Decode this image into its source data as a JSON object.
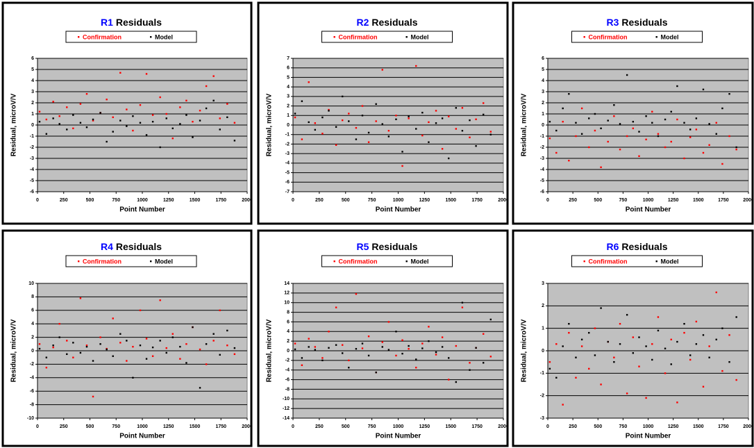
{
  "chart_data": [
    {
      "type": "scatter",
      "title_prefix": "R1",
      "title_prefix_color": "#0000ff",
      "title": "Residuals",
      "xlabel": "Point Number",
      "ylabel": "Residual, microV/V",
      "xlim": [
        0,
        2000
      ],
      "xticks": [
        0,
        250,
        500,
        750,
        1000,
        1250,
        1500,
        1750,
        2000
      ],
      "ylim": [
        -6,
        6
      ],
      "yticks": [
        -6,
        -5,
        -4,
        -3,
        -2,
        -1,
        0,
        1,
        2,
        3,
        4,
        5,
        6
      ],
      "grid": true,
      "plot_background": "#c0c0c0",
      "x": [
        20,
        85,
        150,
        210,
        280,
        340,
        410,
        470,
        530,
        600,
        660,
        720,
        790,
        850,
        910,
        980,
        1040,
        1100,
        1170,
        1230,
        1290,
        1360,
        1420,
        1480,
        1550,
        1610,
        1680,
        1740,
        1810,
        1880
      ],
      "series": [
        {
          "name": "Confirmation",
          "color": "#ff0000",
          "values": [
            1.2,
            0.5,
            2.1,
            0.8,
            1.6,
            -0.3,
            1.9,
            2.8,
            0.4,
            1.1,
            2.3,
            0.7,
            4.7,
            1.4,
            -0.5,
            1.8,
            4.6,
            0.9,
            2.5,
            1.0,
            -1.2,
            1.6,
            2.2,
            0.3,
            1.3,
            3.5,
            4.4,
            0.6,
            1.9,
            0.2
          ]
        },
        {
          "name": "Model",
          "color": "#000000",
          "values": [
            0.3,
            -0.8,
            0.6,
            0.1,
            -0.4,
            0.9,
            0.2,
            -0.2,
            0.5,
            1.1,
            -1.5,
            -0.6,
            0.4,
            -0.1,
            0.8,
            0.2,
            -0.9,
            0.3,
            -2.0,
            0.6,
            -0.3,
            0.1,
            0.9,
            -1.1,
            0.4,
            1.5,
            2.2,
            -0.4,
            0.7,
            -1.4
          ]
        }
      ]
    },
    {
      "type": "scatter",
      "title_prefix": "R2",
      "title_prefix_color": "#0000ff",
      "title": "Residuals",
      "xlabel": "Point Number",
      "ylabel": "Residual, microV/V",
      "xlim": [
        0,
        2000
      ],
      "xticks": [
        0,
        250,
        500,
        750,
        1000,
        1250,
        1500,
        1750,
        2000
      ],
      "ylim": [
        -7,
        7
      ],
      "yticks": [
        -7,
        -6,
        -5,
        -4,
        -3,
        -2,
        -1,
        0,
        1,
        2,
        3,
        4,
        5,
        6,
        7
      ],
      "grid": true,
      "plot_background": "#c0c0c0",
      "x": [
        20,
        85,
        150,
        210,
        280,
        340,
        410,
        470,
        530,
        600,
        660,
        720,
        790,
        850,
        910,
        980,
        1040,
        1100,
        1170,
        1230,
        1290,
        1360,
        1420,
        1480,
        1550,
        1610,
        1680,
        1740,
        1810,
        1880
      ],
      "series": [
        {
          "name": "Confirmation",
          "color": "#ff0000",
          "values": [
            0.8,
            -1.5,
            4.5,
            0.2,
            -0.9,
            1.6,
            -2.1,
            0.5,
            1.2,
            -0.3,
            2.0,
            -1.8,
            0.4,
            5.8,
            -0.6,
            1.0,
            -4.3,
            0.7,
            6.2,
            -1.1,
            0.3,
            1.5,
            -2.5,
            0.9,
            -0.4,
            1.8,
            -1.3,
            0.6,
            2.3,
            -0.7
          ]
        },
        {
          "name": "Model",
          "color": "#000000",
          "values": [
            1.2,
            2.5,
            0.3,
            -0.5,
            0.8,
            1.5,
            -0.2,
            3.0,
            0.4,
            -1.5,
            1.0,
            -0.8,
            2.2,
            0.1,
            -1.2,
            0.6,
            -2.8,
            0.9,
            -0.4,
            1.3,
            -1.8,
            0.2,
            0.7,
            -3.5,
            1.8,
            -0.6,
            0.5,
            -2.2,
            1.1,
            -1.0
          ]
        }
      ]
    },
    {
      "type": "scatter",
      "title_prefix": "R3",
      "title_prefix_color": "#0000ff",
      "title": "Residuals",
      "xlabel": "Point Number",
      "ylabel": "Residual, microV/V",
      "xlim": [
        0,
        2000
      ],
      "xticks": [
        0,
        250,
        500,
        750,
        1000,
        1250,
        1500,
        1750,
        2000
      ],
      "ylim": [
        -6,
        6
      ],
      "yticks": [
        -6,
        -5,
        -4,
        -3,
        -2,
        -1,
        0,
        1,
        2,
        3,
        4,
        5,
        6
      ],
      "grid": true,
      "plot_background": "#c0c0c0",
      "x": [
        20,
        85,
        150,
        210,
        280,
        340,
        410,
        470,
        530,
        600,
        660,
        720,
        790,
        850,
        910,
        980,
        1040,
        1100,
        1170,
        1230,
        1290,
        1360,
        1420,
        1480,
        1550,
        1610,
        1680,
        1740,
        1810,
        1880
      ],
      "series": [
        {
          "name": "Confirmation",
          "color": "#ff0000",
          "values": [
            -1.2,
            -2.5,
            0.3,
            -3.2,
            -1.0,
            1.5,
            -2.0,
            -0.5,
            -3.8,
            -1.5,
            0.8,
            -2.2,
            -1.0,
            -0.3,
            -2.8,
            -1.3,
            1.2,
            -0.8,
            -2.0,
            -1.5,
            0.5,
            -3.0,
            -1.1,
            -0.4,
            -2.5,
            -1.8,
            0.2,
            -3.5,
            -1.0,
            -2.2
          ]
        },
        {
          "name": "Model",
          "color": "#000000",
          "values": [
            0.3,
            -0.5,
            1.5,
            2.8,
            0.2,
            -0.8,
            0.6,
            1.0,
            -0.3,
            0.4,
            1.8,
            0.1,
            4.5,
            0.3,
            -0.6,
            0.8,
            0.2,
            -1.0,
            0.5,
            1.2,
            3.5,
            0.2,
            -0.4,
            0.6,
            3.2,
            0.1,
            -0.8,
            1.5,
            2.8,
            -2.0
          ]
        }
      ]
    },
    {
      "type": "scatter",
      "title_prefix": "R4",
      "title_prefix_color": "#0000ff",
      "title": "Residuals",
      "xlabel": "Point Number",
      "ylabel": "Residual, microV/V",
      "xlim": [
        0,
        2000
      ],
      "xticks": [
        0,
        250,
        500,
        750,
        1000,
        1250,
        1500,
        1750,
        2000
      ],
      "ylim": [
        -10,
        10
      ],
      "yticks": [
        -10,
        -8,
        -6,
        -4,
        -2,
        0,
        2,
        4,
        6,
        8,
        10
      ],
      "grid": true,
      "plot_background": "#c0c0c0",
      "x": [
        20,
        85,
        150,
        210,
        280,
        340,
        410,
        470,
        530,
        600,
        660,
        720,
        790,
        850,
        910,
        980,
        1040,
        1100,
        1170,
        1230,
        1290,
        1360,
        1420,
        1480,
        1550,
        1610,
        1680,
        1740,
        1810,
        1880
      ],
      "series": [
        {
          "name": "Confirmation",
          "color": "#ff0000",
          "values": [
            1.0,
            -2.5,
            0.5,
            4.0,
            1.5,
            -1.0,
            7.8,
            0.8,
            -6.8,
            2.0,
            0.3,
            4.8,
            1.2,
            -1.5,
            0.6,
            6.0,
            1.8,
            -0.8,
            7.5,
            0.4,
            2.5,
            -1.2,
            1.0,
            3.5,
            0.2,
            -2.0,
            1.5,
            6.0,
            0.8,
            -0.5
          ]
        },
        {
          "name": "Model",
          "color": "#000000",
          "values": [
            0.3,
            -1.0,
            0.8,
            2.0,
            -0.5,
            1.2,
            -0.3,
            0.6,
            -1.5,
            1.0,
            0.2,
            -0.8,
            2.5,
            1.5,
            -4.0,
            0.8,
            -1.2,
            0.5,
            1.5,
            -0.3,
            2.0,
            0.6,
            -1.8,
            3.5,
            -5.5,
            1.0,
            2.5,
            -0.6,
            3.0,
            0.4
          ]
        }
      ]
    },
    {
      "type": "scatter",
      "title_prefix": "R5",
      "title_prefix_color": "#0000ff",
      "title": "Residuals",
      "xlabel": "Point Number",
      "ylabel": "Residual, microV/V",
      "xlim": [
        0,
        2000
      ],
      "xticks": [
        0,
        250,
        500,
        750,
        1000,
        1250,
        1500,
        1750,
        2000
      ],
      "ylim": [
        -14,
        14
      ],
      "yticks": [
        -14,
        -12,
        -10,
        -8,
        -6,
        -4,
        -2,
        0,
        2,
        4,
        6,
        8,
        10,
        12,
        14
      ],
      "grid": true,
      "plot_background": "#c0c0c0",
      "x": [
        20,
        85,
        150,
        210,
        280,
        340,
        410,
        470,
        530,
        600,
        660,
        720,
        790,
        850,
        910,
        980,
        1040,
        1100,
        1170,
        1230,
        1290,
        1360,
        1420,
        1480,
        1550,
        1610,
        1680,
        1740,
        1810,
        1880
      ],
      "series": [
        {
          "name": "Confirmation",
          "color": "#ff0000",
          "values": [
            1.5,
            -3.0,
            2.5,
            0.8,
            -1.5,
            4.0,
            9.0,
            1.2,
            -2.0,
            11.8,
            0.5,
            3.0,
            -4.5,
            1.8,
            6.0,
            -1.0,
            2.2,
            0.4,
            -3.5,
            1.5,
            5.0,
            -0.8,
            2.8,
            -6.0,
            1.0,
            9.0,
            -2.5,
            0.6,
            3.5,
            -1.2
          ]
        },
        {
          "name": "Model",
          "color": "#000000",
          "values": [
            0.3,
            -1.5,
            0.8,
            0.2,
            -2.0,
            0.6,
            1.2,
            -0.5,
            -3.5,
            0.4,
            1.5,
            -1.0,
            -4.5,
            0.8,
            0.2,
            4.0,
            -0.6,
            1.0,
            -1.8,
            0.5,
            2.0,
            -0.3,
            0.8,
            -1.5,
            -6.5,
            10.0,
            -4.0,
            0.6,
            -2.5,
            6.5
          ]
        }
      ]
    },
    {
      "type": "scatter",
      "title_prefix": "R6",
      "title_prefix_color": "#0000ff",
      "title": "Residuals",
      "xlabel": "Point Number",
      "ylabel": "Residual, microV/V",
      "xlim": [
        0,
        2000
      ],
      "xticks": [
        0,
        250,
        500,
        750,
        1000,
        1250,
        1500,
        1750,
        2000
      ],
      "ylim": [
        -3,
        3
      ],
      "yticks": [
        -3,
        -2,
        -1,
        0,
        1,
        2,
        3
      ],
      "grid": true,
      "plot_background": "#c0c0c0",
      "x": [
        20,
        85,
        150,
        210,
        280,
        340,
        410,
        470,
        530,
        600,
        660,
        720,
        790,
        850,
        910,
        980,
        1040,
        1100,
        1170,
        1230,
        1290,
        1360,
        1420,
        1480,
        1550,
        1610,
        1680,
        1740,
        1810,
        1880
      ],
      "series": [
        {
          "name": "Confirmation",
          "color": "#ff0000",
          "values": [
            -0.5,
            0.3,
            -2.4,
            0.8,
            -1.2,
            0.2,
            -0.8,
            1.0,
            -1.5,
            0.4,
            -0.3,
            1.2,
            -1.9,
            0.6,
            -0.7,
            -2.1,
            0.3,
            1.5,
            -1.0,
            0.5,
            -2.3,
            0.8,
            -0.4,
            1.3,
            -1.6,
            0.2,
            2.6,
            -0.9,
            0.7,
            -1.3
          ]
        },
        {
          "name": "Model",
          "color": "#000000",
          "values": [
            -0.8,
            -1.2,
            0.2,
            1.2,
            -0.3,
            0.5,
            0.8,
            -0.2,
            1.9,
            0.4,
            -0.5,
            0.3,
            1.6,
            -0.1,
            0.6,
            0.2,
            -0.4,
            0.9,
            0.1,
            -0.6,
            0.4,
            1.2,
            -0.2,
            0.3,
            0.7,
            -0.3,
            0.5,
            1.0,
            -0.5,
            1.5
          ]
        }
      ]
    }
  ]
}
